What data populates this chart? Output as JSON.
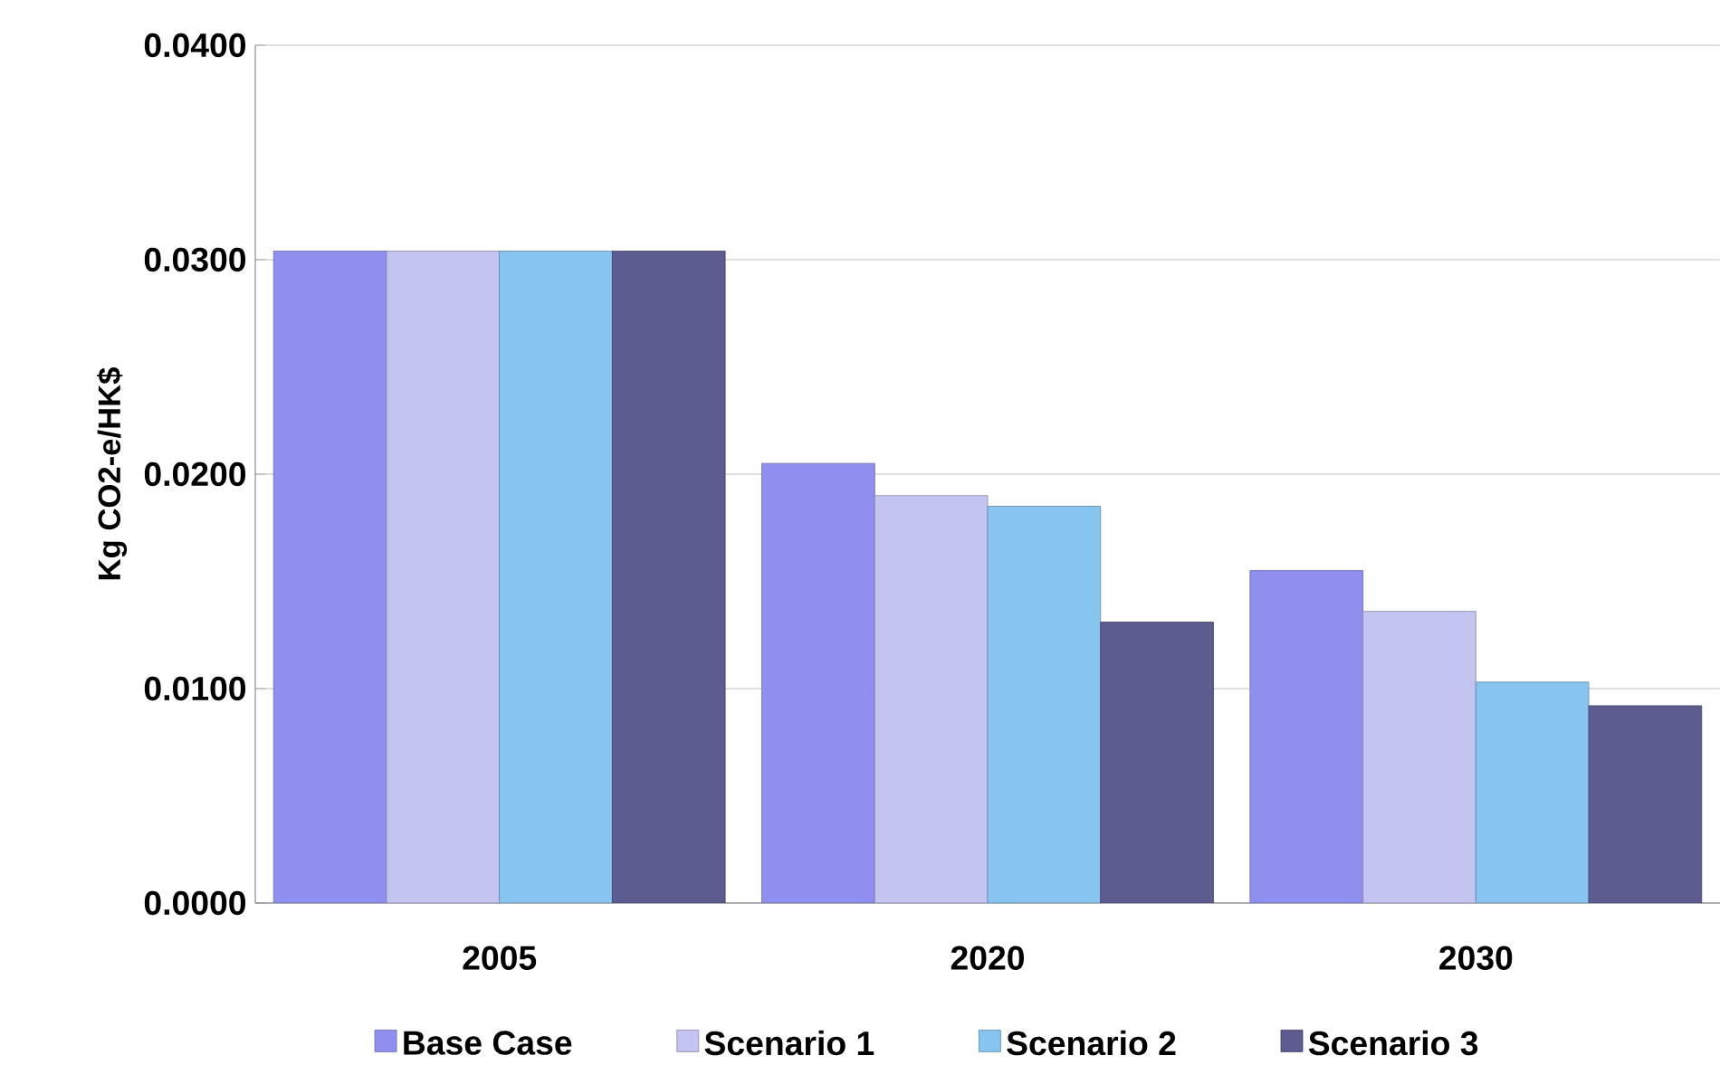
{
  "chart_data": {
    "type": "bar",
    "ylabel": "Kg CO2-e/HK$",
    "categories": [
      "2005",
      "2020",
      "2030"
    ],
    "series": [
      {
        "name": "Base Case",
        "color": "#8f8ff0",
        "values": [
          0.0304,
          0.0205,
          0.0155
        ]
      },
      {
        "name": "Scenario 1",
        "color": "#c4c4f0",
        "values": [
          0.0304,
          0.019,
          0.0136
        ]
      },
      {
        "name": "Scenario 2",
        "color": "#88c4f0",
        "values": [
          0.0304,
          0.0185,
          0.0103
        ]
      },
      {
        "name": "Scenario 3",
        "color": "#5c5c90",
        "values": [
          0.0304,
          0.0131,
          0.0092
        ]
      }
    ],
    "ylim": [
      0,
      0.04
    ],
    "yticks": [
      {
        "value": 0,
        "label": "0.0000"
      },
      {
        "value": 0.01,
        "label": "0.0100"
      },
      {
        "value": 0.02,
        "label": "0.0200"
      },
      {
        "value": 0.03,
        "label": "0.0300"
      },
      {
        "value": 0.04,
        "label": "0.0400"
      }
    ],
    "grid": "y",
    "legend": "bottom"
  }
}
